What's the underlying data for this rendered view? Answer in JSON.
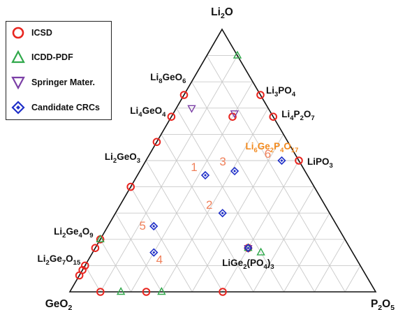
{
  "chart_data": {
    "type": "ternary-scatter",
    "vertex_labels": {
      "top": [
        "Li",
        "2",
        "O",
        ""
      ],
      "left": [
        "GeO",
        "2",
        "",
        ""
      ],
      "right": [
        "P",
        "2",
        "O",
        "5"
      ]
    },
    "grid_step": 0.1,
    "legend": [
      {
        "name": "ICSD",
        "marker": "circle",
        "color": "#e8251f"
      },
      {
        "name": "ICDD-PDF",
        "marker": "triangle-up",
        "color": "#2fa84a"
      },
      {
        "name": "Springer Mater.",
        "marker": "triangle-down",
        "color": "#7b3fa6"
      },
      {
        "name": "Candidate CRCs",
        "marker": "diamond",
        "color": "#1f2fc8"
      }
    ],
    "series": [
      {
        "name": "ICSD",
        "points": [
          {
            "li2o": 0.75,
            "p2o5": 0.0
          },
          {
            "li2o": 0.667,
            "p2o5": 0.0
          },
          {
            "li2o": 0.571,
            "p2o5": 0.0
          },
          {
            "li2o": 0.4,
            "p2o5": 0.0
          },
          {
            "li2o": 0.2,
            "p2o5": 0.0
          },
          {
            "li2o": 0.1,
            "p2o5": 0.0
          },
          {
            "li2o": 0.0833,
            "p2o5": 0.0
          },
          {
            "li2o": 0.75,
            "p2o5": 0.25
          },
          {
            "li2o": 0.667,
            "p2o5": 0.333
          },
          {
            "li2o": 0.5,
            "p2o5": 0.5
          },
          {
            "li2o": 0.0,
            "p2o5": 0.1
          },
          {
            "li2o": 0.0,
            "p2o5": 0.25
          },
          {
            "li2o": 0.0,
            "p2o5": 0.5
          },
          {
            "li2o": 0.667,
            "p2o5": 0.2
          },
          {
            "li2o": 0.0625,
            "p2o5": 0.0
          },
          {
            "li2o": 0.167,
            "p2o5": 0.0
          },
          {
            "li2o": 0.167,
            "p2o5": 0.5
          }
        ]
      },
      {
        "name": "ICDD-PDF",
        "points": [
          {
            "li2o": 0.9,
            "p2o5": 0.1
          },
          {
            "li2o": 0.0,
            "p2o5": 0.167
          },
          {
            "li2o": 0.0,
            "p2o5": 0.3
          },
          {
            "li2o": 0.15,
            "p2o5": 0.55
          },
          {
            "li2o": 0.2,
            "p2o5": 0.0
          },
          {
            "li2o": 0.167,
            "p2o5": 0.5
          }
        ]
      },
      {
        "name": "Springer Mater.",
        "points": [
          {
            "li2o": 0.7,
            "p2o5": 0.05
          },
          {
            "li2o": 0.68,
            "p2o5": 0.2
          },
          {
            "li2o": 0.167,
            "p2o5": 0.5
          }
        ]
      },
      {
        "name": "Candidate CRCs",
        "points": [
          {
            "li2o": 0.444,
            "p2o5": 0.222,
            "label": "1"
          },
          {
            "li2o": 0.3,
            "p2o5": 0.35,
            "label": "2"
          },
          {
            "li2o": 0.46,
            "p2o5": 0.31,
            "label": "3"
          },
          {
            "li2o": 0.15,
            "p2o5": 0.2,
            "label": "4"
          },
          {
            "li2o": 0.25,
            "p2o5": 0.15,
            "label": "5"
          },
          {
            "li2o": 0.5,
            "p2o5": 0.444,
            "label": "6"
          },
          {
            "li2o": 0.167,
            "p2o5": 0.5,
            "label": ""
          }
        ]
      }
    ],
    "compound_labels": [
      {
        "parts": [
          "Li",
          "8",
          "GeO",
          "6"
        ],
        "color": "#111111",
        "anchor": {
          "li2o": 0.8,
          "p2o5": 0.0
        }
      },
      {
        "parts": [
          "Li",
          "4",
          "GeO",
          "4"
        ],
        "color": "#111111",
        "anchor": {
          "li2o": 0.667,
          "p2o5": 0.0
        }
      },
      {
        "parts": [
          "Li",
          "2",
          "GeO",
          "3"
        ],
        "color": "#111111",
        "anchor": {
          "li2o": 0.5,
          "p2o5": 0.0
        }
      },
      {
        "parts": [
          "Li",
          "2",
          "Ge",
          "4",
          "O",
          "9"
        ],
        "color": "#111111",
        "anchor": {
          "li2o": 0.2,
          "p2o5": 0.0
        }
      },
      {
        "parts": [
          "Li",
          "2",
          "Ge",
          "7",
          "O",
          "15"
        ],
        "color": "#111111",
        "anchor": {
          "li2o": 0.125,
          "p2o5": 0.0
        }
      },
      {
        "parts": [
          "Li",
          "3",
          "PO",
          "4"
        ],
        "color": "#111111",
        "anchor": {
          "li2o": 0.75,
          "p2o5": 0.25
        }
      },
      {
        "parts": [
          "Li",
          "4",
          "P",
          "2",
          "O",
          "7"
        ],
        "color": "#111111",
        "anchor": {
          "li2o": 0.667,
          "p2o5": 0.333
        }
      },
      {
        "parts": [
          "LiPO",
          "3"
        ],
        "color": "#111111",
        "anchor": {
          "li2o": 0.5,
          "p2o5": 0.5
        }
      },
      {
        "parts": [
          "Li",
          "6",
          "Ge",
          "2",
          "P",
          "4",
          "O",
          "17"
        ],
        "color": "#f28a1e",
        "anchor": {
          "li2o": 0.5,
          "p2o5": 0.444
        }
      },
      {
        "parts": [
          "LiGe",
          "2",
          "(PO",
          "4",
          ")",
          "3"
        ],
        "color": "#111111",
        "anchor": {
          "li2o": 0.167,
          "p2o5": 0.5
        }
      }
    ]
  }
}
